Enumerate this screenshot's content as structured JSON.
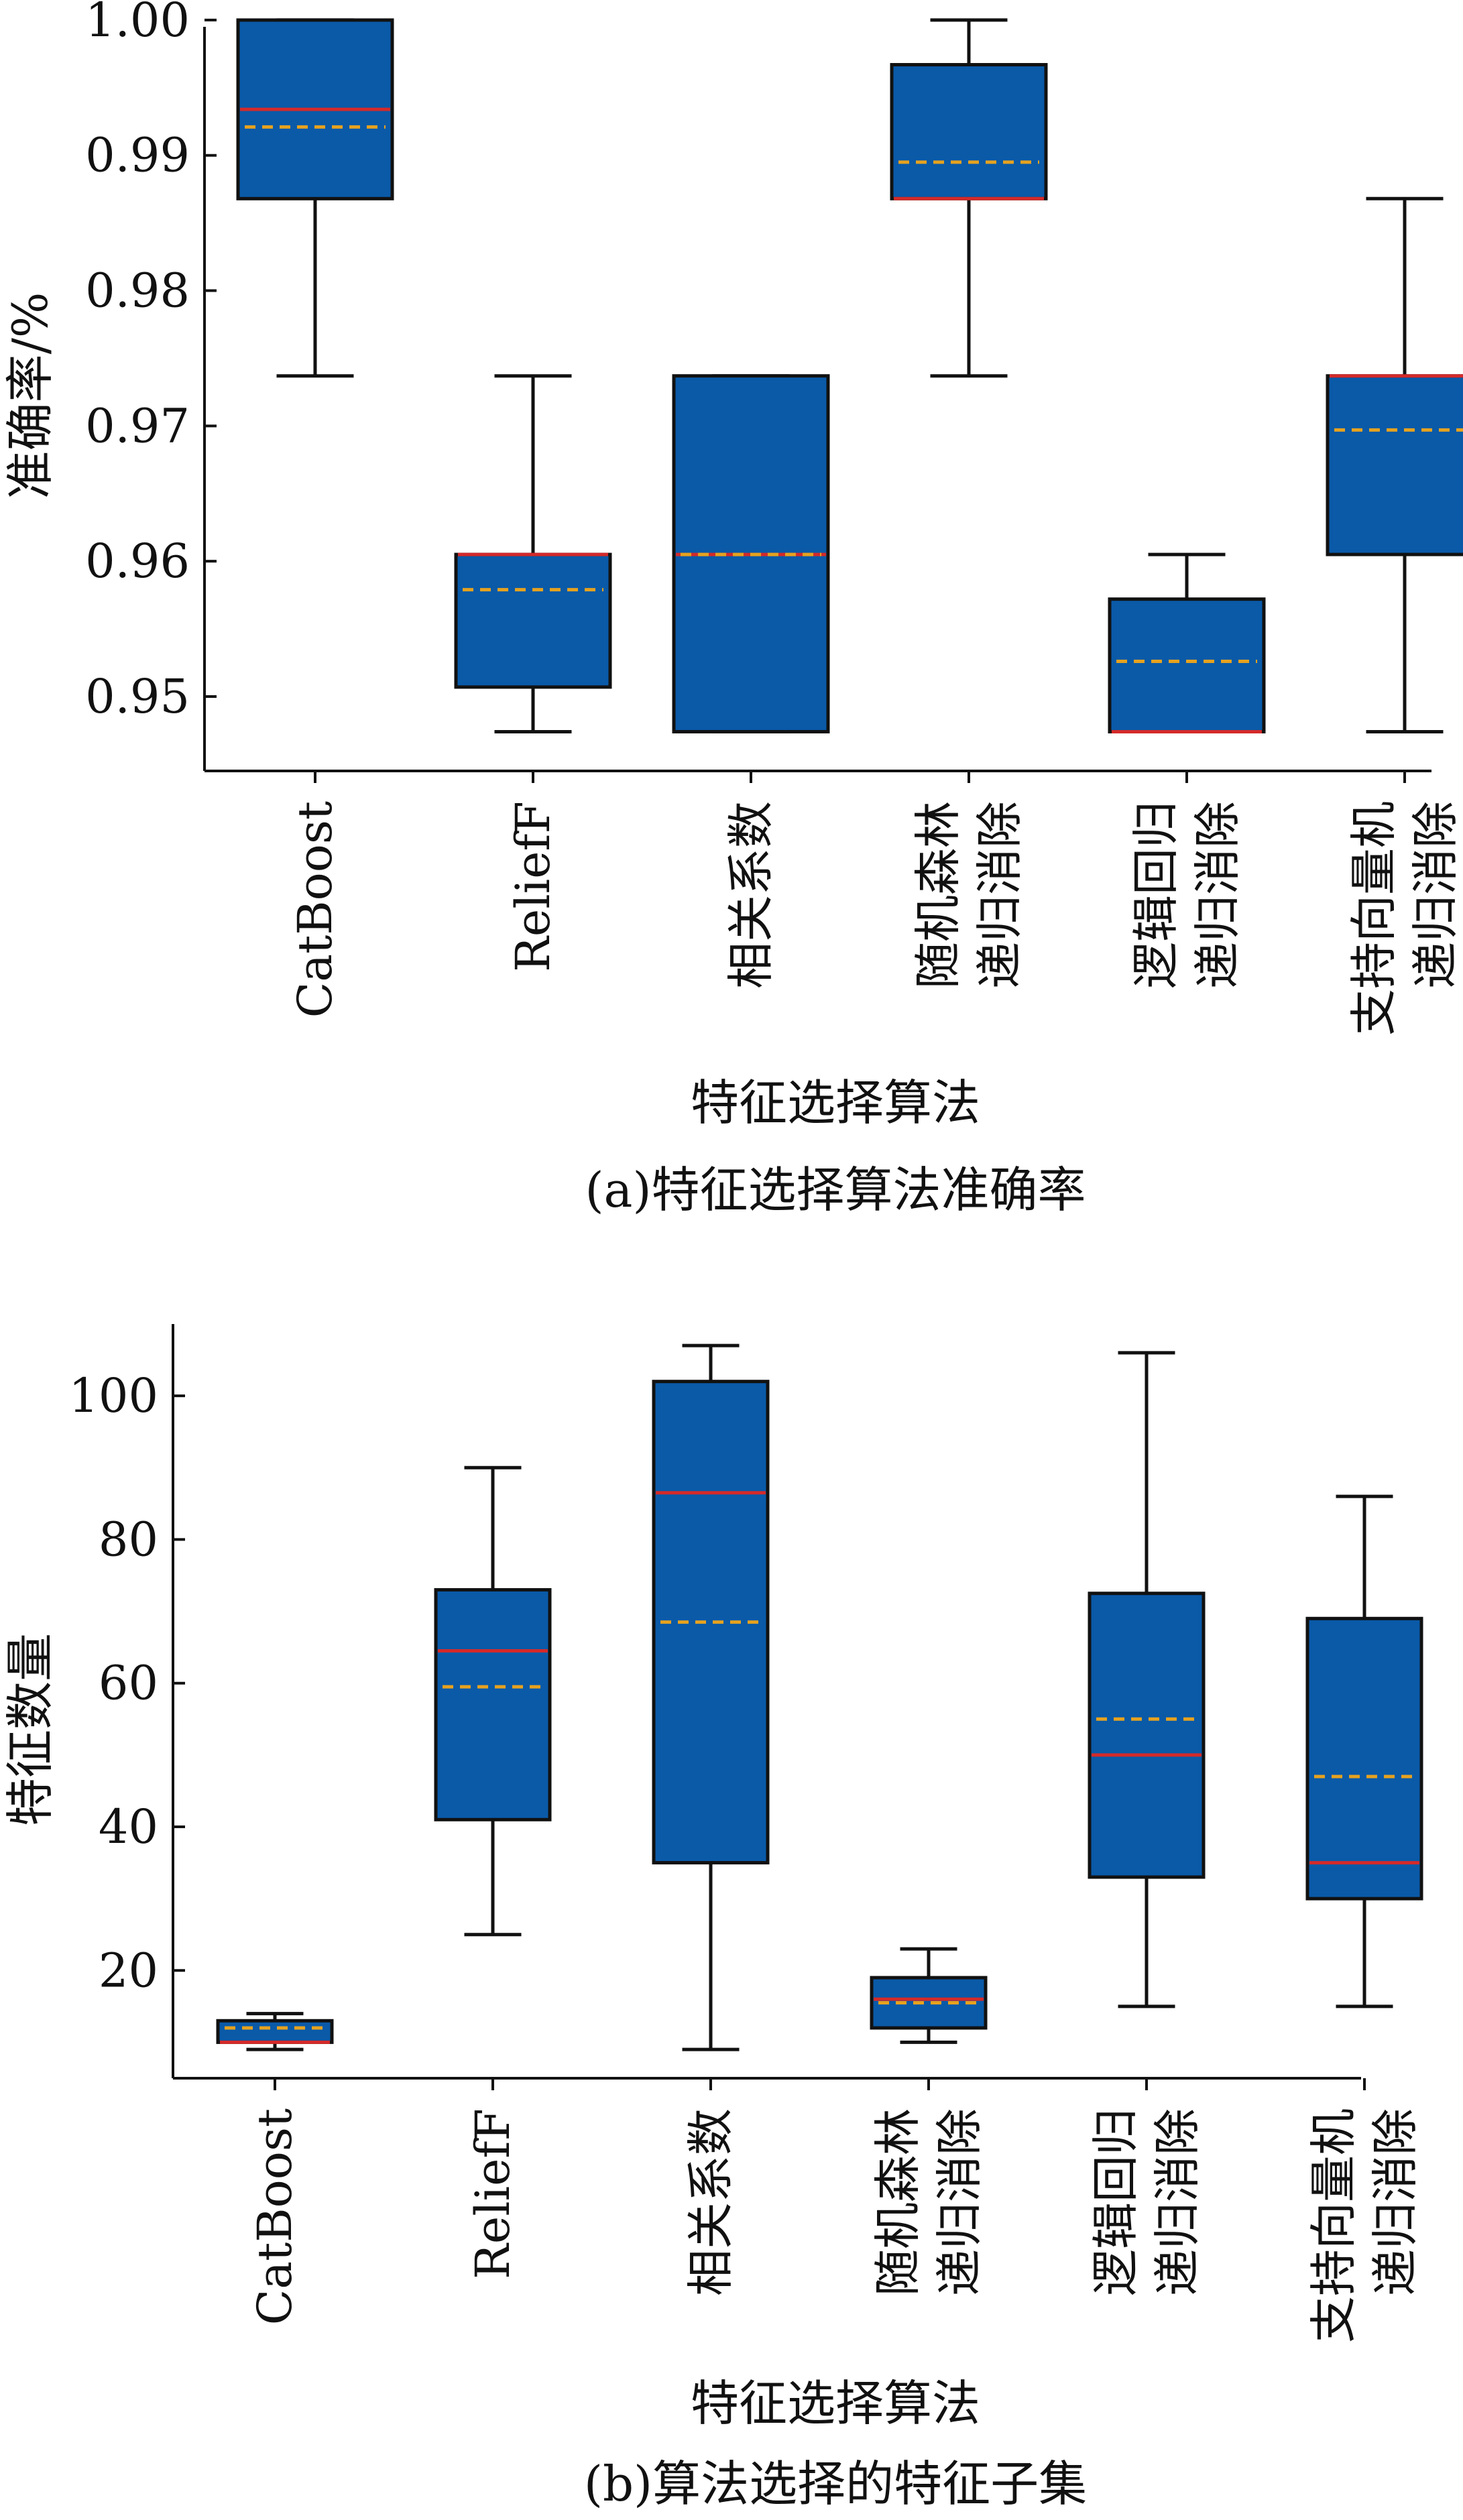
{
  "colors": {
    "box_fill": "#0a5aa8",
    "box_stroke": "#111111",
    "median": "#d42a2a",
    "mean": "#e6a21f",
    "axis": "#111111"
  },
  "chart_data": [
    {
      "type": "box",
      "title": "",
      "caption": "(a)特征选择算法准确率",
      "xlabel": "特征选择算法",
      "ylabel": "准确率/%",
      "ylim": [
        0.9445,
        0.9995
      ],
      "yticks": [
        0.95,
        0.96,
        0.97,
        0.98,
        0.99,
        1.0
      ],
      "ytick_labels": [
        "0.95",
        "0.96",
        "0.97",
        "0.98",
        "0.99",
        "1.00"
      ],
      "categories": [
        {
          "lines": [
            "CatBoost"
          ]
        },
        {
          "lines": [
            "ReliefF"
          ]
        },
        {
          "lines": [
            "相关系数"
          ]
        },
        {
          "lines": [
            "随机森林",
            "递归消除"
          ]
        },
        {
          "lines": [
            "逻辑回归",
            "递归消除"
          ]
        },
        {
          "lines": [
            "支持向量机",
            "递归消除"
          ]
        }
      ],
      "boxes": [
        {
          "whisker_low": 0.9737,
          "q1": 0.9868,
          "median": 0.9934,
          "mean": 0.9921,
          "q3": 1.0,
          "whisker_high": 1.0
        },
        {
          "whisker_low": 0.9474,
          "q1": 0.9507,
          "median": 0.9605,
          "mean": 0.9579,
          "q3": 0.9605,
          "whisker_high": 0.9737
        },
        {
          "whisker_low": 0.9474,
          "q1": 0.9474,
          "median": 0.9605,
          "mean": 0.9605,
          "q3": 0.9737,
          "whisker_high": 0.9737
        },
        {
          "whisker_low": 0.9737,
          "q1": 0.9868,
          "median": 0.9868,
          "mean": 0.9895,
          "q3": 0.9967,
          "whisker_high": 1.0
        },
        {
          "whisker_low": 0.9474,
          "q1": 0.9474,
          "median": 0.9474,
          "mean": 0.9526,
          "q3": 0.9572,
          "whisker_high": 0.9605
        },
        {
          "whisker_low": 0.9474,
          "q1": 0.9605,
          "median": 0.9737,
          "mean": 0.9697,
          "q3": 0.9737,
          "whisker_high": 0.9868
        }
      ]
    },
    {
      "type": "box",
      "title": "",
      "caption": "(b)算法选择的特征子集",
      "xlabel": "特征选择算法",
      "ylabel": "特征数量",
      "ylim": [
        5,
        110
      ],
      "yticks": [
        20,
        40,
        60,
        80,
        100
      ],
      "ytick_labels": [
        "20",
        "40",
        "60",
        "80",
        "100"
      ],
      "categories": [
        {
          "lines": [
            "CatBoost"
          ]
        },
        {
          "lines": [
            "ReliefF"
          ]
        },
        {
          "lines": [
            "相关系数"
          ]
        },
        {
          "lines": [
            "随机森林",
            "递归消除"
          ]
        },
        {
          "lines": [
            "逻辑回归",
            "递归消除"
          ]
        },
        {
          "lines": [
            "支持向量机",
            "递归消除"
          ]
        }
      ],
      "boxes": [
        {
          "whisker_low": 9,
          "q1": 10,
          "median": 10,
          "mean": 12,
          "q3": 13,
          "whisker_high": 14
        },
        {
          "whisker_low": 25,
          "q1": 41,
          "median": 64.5,
          "mean": 59.5,
          "q3": 73,
          "whisker_high": 90
        },
        {
          "whisker_low": 9,
          "q1": 35,
          "median": 86.5,
          "mean": 68.5,
          "q3": 102,
          "whisker_high": 107
        },
        {
          "whisker_low": 10,
          "q1": 12,
          "median": 16,
          "mean": 15.5,
          "q3": 19,
          "whisker_high": 23
        },
        {
          "whisker_low": 15,
          "q1": 33,
          "median": 50,
          "mean": 55,
          "q3": 72.5,
          "whisker_high": 106
        },
        {
          "whisker_low": 15,
          "q1": 30,
          "median": 35,
          "mean": 47,
          "q3": 69,
          "whisker_high": 86
        }
      ]
    }
  ]
}
